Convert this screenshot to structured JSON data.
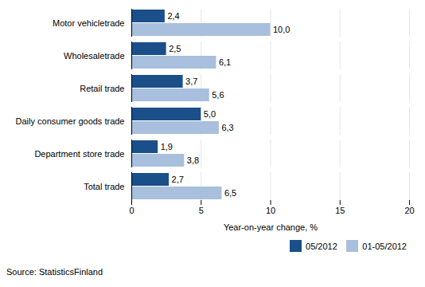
{
  "chart_data": {
    "type": "bar",
    "orientation": "horizontal",
    "categories": [
      "Motor vehicletrade",
      "Wholesaletrade",
      "Retail trade",
      "Daily consumer goods trade",
      "Department store trade",
      "Total trade"
    ],
    "series": [
      {
        "name": "05/2012",
        "color": "#1a4f8a",
        "values": [
          2.4,
          2.5,
          3.7,
          5.0,
          1.9,
          2.7
        ],
        "value_labels": [
          "2,4",
          "2,5",
          "3,7",
          "5,0",
          "1,9",
          "2,7"
        ]
      },
      {
        "name": "01-05/2012",
        "color": "#a8bfdd",
        "values": [
          10.0,
          6.1,
          5.6,
          6.3,
          3.8,
          6.5
        ],
        "value_labels": [
          "10,0",
          "6,1",
          "5,6",
          "6,3",
          "3,8",
          "6,5"
        ]
      }
    ],
    "xlabel": "Year-on-year change, %",
    "xlim": [
      0,
      20
    ],
    "xticks": [
      0,
      5,
      10,
      15,
      20
    ],
    "grid": true,
    "legend": "lower right",
    "data_labels": true,
    "caption": "Source: StatisticsFinland"
  }
}
